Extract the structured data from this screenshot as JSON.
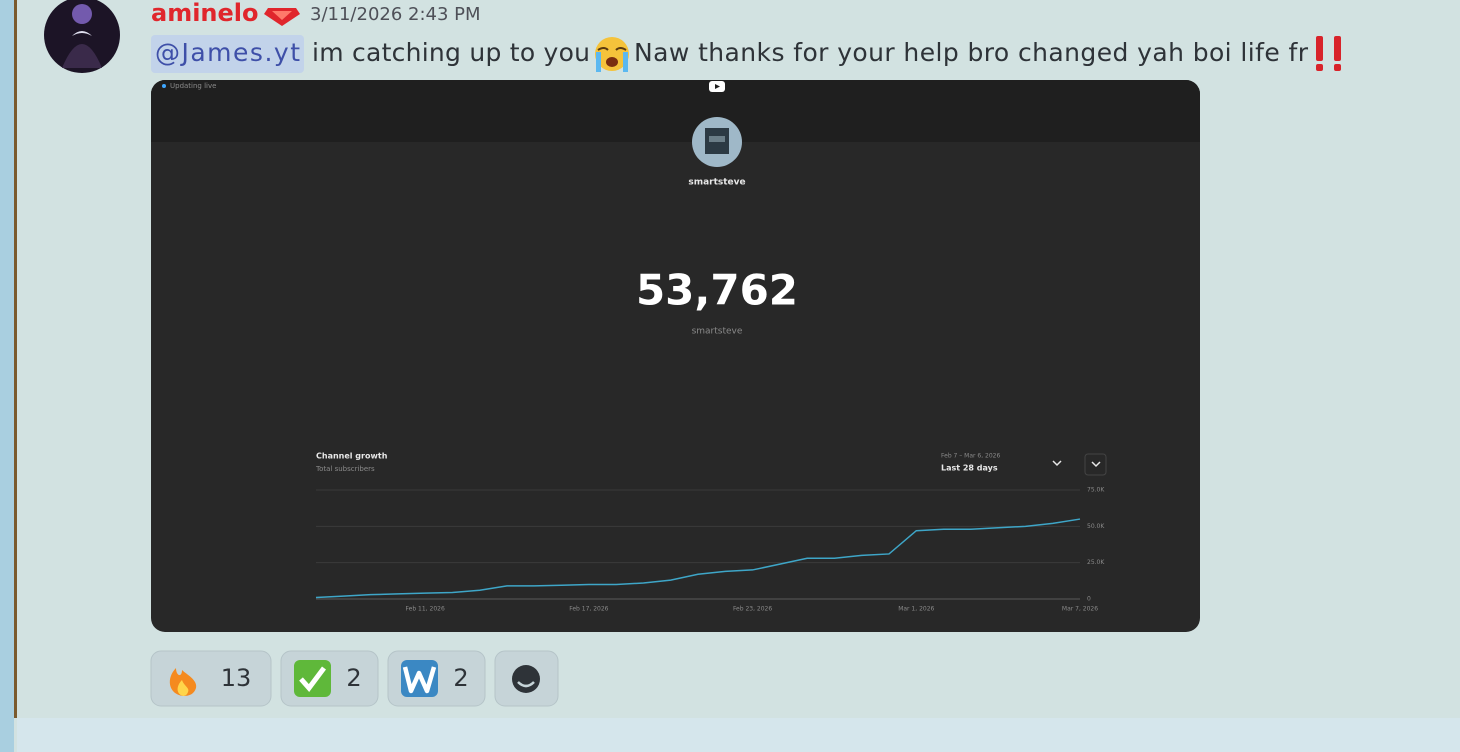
{
  "message": {
    "author": "aminelo",
    "timestamp": "3/11/2026 2:43 PM",
    "mention": "@James.yt",
    "text_before_emoji": "im catching up to you",
    "text_after_emoji": "Naw thanks for your help bro changed yah boi life fr",
    "embed": {
      "status": "Updating live",
      "channel_name": "smartsteve",
      "count": "53,762",
      "count_caption": "smartsteve",
      "chart_data": {
        "type": "line",
        "title": "Channel growth",
        "subtitle": "Total subscribers",
        "date_range": "Feb 7 – Mar 6, 2026",
        "period": "Last 28 days",
        "categories": [
          null,
          null,
          null,
          null,
          "Feb 11, 2026",
          null,
          null,
          null,
          null,
          null,
          "Feb 17, 2026",
          null,
          null,
          null,
          null,
          null,
          "Feb 23, 2026",
          null,
          null,
          null,
          null,
          null,
          "Mar 1, 2026",
          null,
          null,
          null,
          null,
          null,
          "Mar 7, 2026"
        ],
        "series": [
          {
            "color": "#3ea6c8",
            "values": [
              1000,
              2000,
              3000,
              3500,
              4000,
              4500,
              6000,
              9000,
              9000,
              9500,
              10000,
              10000,
              11000,
              13000,
              17000,
              19000,
              20000,
              24000,
              28000,
              28000,
              30000,
              31000,
              47000,
              48000,
              48000,
              49000,
              50000,
              52000,
              55000
            ]
          }
        ],
        "ylim": [
          0,
          75000
        ],
        "yticks": [
          0,
          {
            "value": 25000,
            "label": "25.0K"
          },
          {
            "value": 50000,
            "label": "50.0K"
          },
          {
            "value": 75000,
            "label": "75.0K"
          }
        ],
        "grid": true
      }
    },
    "reactions": [
      {
        "count": 13
      },
      {
        "count": 2
      },
      {
        "count": 2
      }
    ]
  }
}
